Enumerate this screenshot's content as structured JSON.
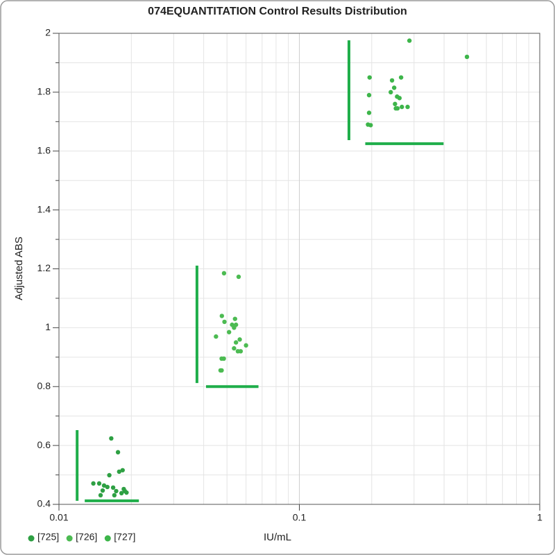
{
  "chart_data": {
    "type": "scatter",
    "title": "074EQUANTITATION Control Results Distribution",
    "x_label": "IU/mL",
    "y_label": "Adjusted ABS",
    "x_scale": "log",
    "xlim": [
      0.01,
      1
    ],
    "xticks": [
      0.01,
      0.1,
      1
    ],
    "ylim": [
      0.4,
      2
    ],
    "yticks": [
      0.4,
      0.6,
      0.8,
      1,
      1.2,
      1.4,
      1.6,
      1.8,
      2
    ],
    "grid": true,
    "legend": "bottom-left",
    "range_color": "#1fae4a",
    "ranges": [
      {
        "x": 0.0119,
        "y": [
          0.412,
          0.652
        ]
      },
      {
        "y": 0.412,
        "x": [
          0.0128,
          0.0215
        ]
      },
      {
        "x": 0.0375,
        "y": [
          0.812,
          1.211
        ]
      },
      {
        "y": 0.8,
        "x": [
          0.0409,
          0.0676
        ]
      },
      {
        "x": 0.1608,
        "y": [
          1.637,
          1.976
        ]
      },
      {
        "y": 1.625,
        "x": [
          0.188,
          0.398
        ]
      }
    ],
    "series": [
      {
        "name": "[725]",
        "color": "#2ea043",
        "x": [
          0.0165,
          0.0176,
          0.0178,
          0.0184,
          0.0162,
          0.0139,
          0.0147,
          0.0154,
          0.0152,
          0.0159,
          0.0168,
          0.0173,
          0.0186,
          0.0188,
          0.0191,
          0.0182,
          0.017,
          0.0149
        ],
        "values": [
          0.624,
          0.577,
          0.511,
          0.516,
          0.499,
          0.471,
          0.471,
          0.464,
          0.447,
          0.459,
          0.457,
          0.445,
          0.452,
          0.445,
          0.44,
          0.438,
          0.431,
          0.431
        ]
      },
      {
        "name": "[726]",
        "color": "#4cbb52",
        "x": [
          0.0486,
          0.0559,
          0.0476,
          0.054,
          0.0488,
          0.0525,
          0.0545,
          0.0535,
          0.051,
          0.045,
          0.0565,
          0.0545,
          0.06,
          0.0535,
          0.0555,
          0.057,
          0.0485,
          0.0475,
          0.0475,
          0.047
        ],
        "values": [
          1.185,
          1.173,
          1.04,
          1.03,
          1.02,
          1.01,
          1.01,
          1.0,
          0.985,
          0.97,
          0.96,
          0.95,
          0.94,
          0.93,
          0.92,
          0.92,
          0.895,
          0.895,
          0.855,
          0.855
        ]
      },
      {
        "name": "[727]",
        "color": "#3db54a",
        "x": [
          0.287,
          0.498,
          0.196,
          0.265,
          0.243,
          0.248,
          0.24,
          0.195,
          0.255,
          0.261,
          0.25,
          0.282,
          0.267,
          0.252,
          0.256,
          0.195,
          0.193,
          0.198
        ],
        "values": [
          1.975,
          1.92,
          1.85,
          1.85,
          1.84,
          1.815,
          1.8,
          1.79,
          1.785,
          1.78,
          1.76,
          1.75,
          1.75,
          1.745,
          1.745,
          1.73,
          1.69,
          1.688
        ]
      }
    ]
  }
}
